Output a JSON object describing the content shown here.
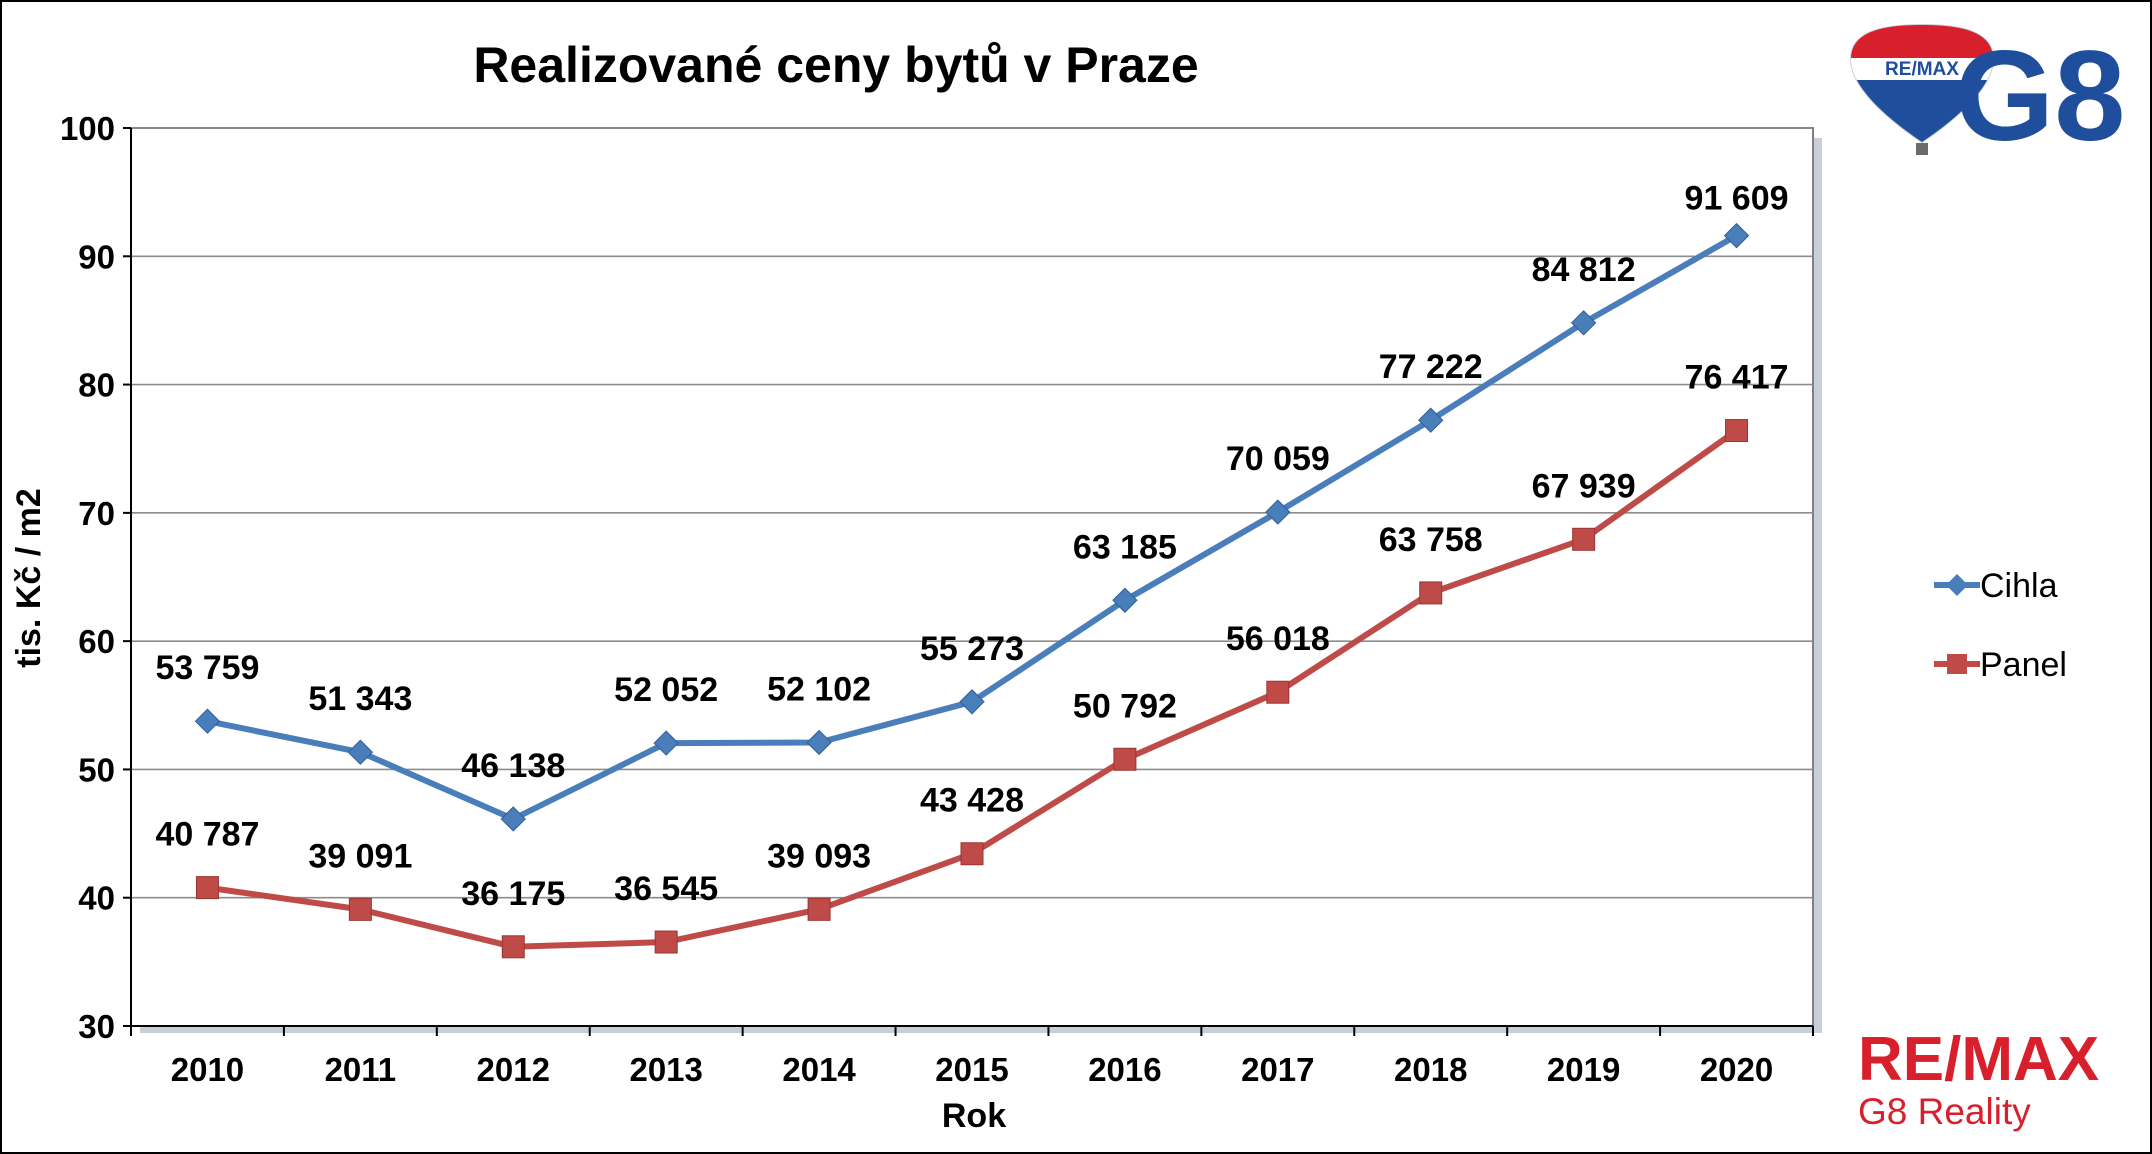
{
  "chart_data": {
    "type": "line",
    "title": "Realizované ceny bytů v Praze",
    "xlabel": "Rok",
    "ylabel": "tis. Kč / m2",
    "ylim": [
      30,
      100
    ],
    "yticks": [
      "30",
      "40",
      "50",
      "60",
      "70",
      "80",
      "90",
      "100"
    ],
    "grid": true,
    "legend_position": "right",
    "categories": [
      "2010",
      "2011",
      "2012",
      "2013",
      "2014",
      "2015",
      "2016",
      "2017",
      "2018",
      "2019",
      "2020"
    ],
    "series": [
      {
        "name": "Cihla",
        "color": "#4a7ebb",
        "marker": "diamond",
        "values": [
          53.759,
          51.343,
          46.138,
          52.052,
          52.102,
          55.273,
          63.185,
          70.059,
          77.222,
          84.812,
          91.609
        ],
        "labels": [
          "53 759",
          "51 343",
          "46 138",
          "52 052",
          "52 102",
          "55 273",
          "63 185",
          "70 059",
          "77 222",
          "84 812",
          "91 609"
        ]
      },
      {
        "name": "Panel",
        "color": "#be4b48",
        "marker": "square",
        "values": [
          40.787,
          39.091,
          36.175,
          36.545,
          39.093,
          43.428,
          50.792,
          56.018,
          63.758,
          67.939,
          76.417
        ],
        "labels": [
          "40 787",
          "39 091",
          "36 175",
          "36 545",
          "39 093",
          "43 428",
          "50 792",
          "56 018",
          "63 758",
          "67 939",
          "76 417"
        ]
      }
    ]
  },
  "branding": {
    "balloon_text": "RE/MAX",
    "logo_text": "G8",
    "footer_main": "RE/MAX",
    "footer_sub": "G8 Reality",
    "brand_blue": "#1f4e9c",
    "brand_red": "#d8202c"
  }
}
